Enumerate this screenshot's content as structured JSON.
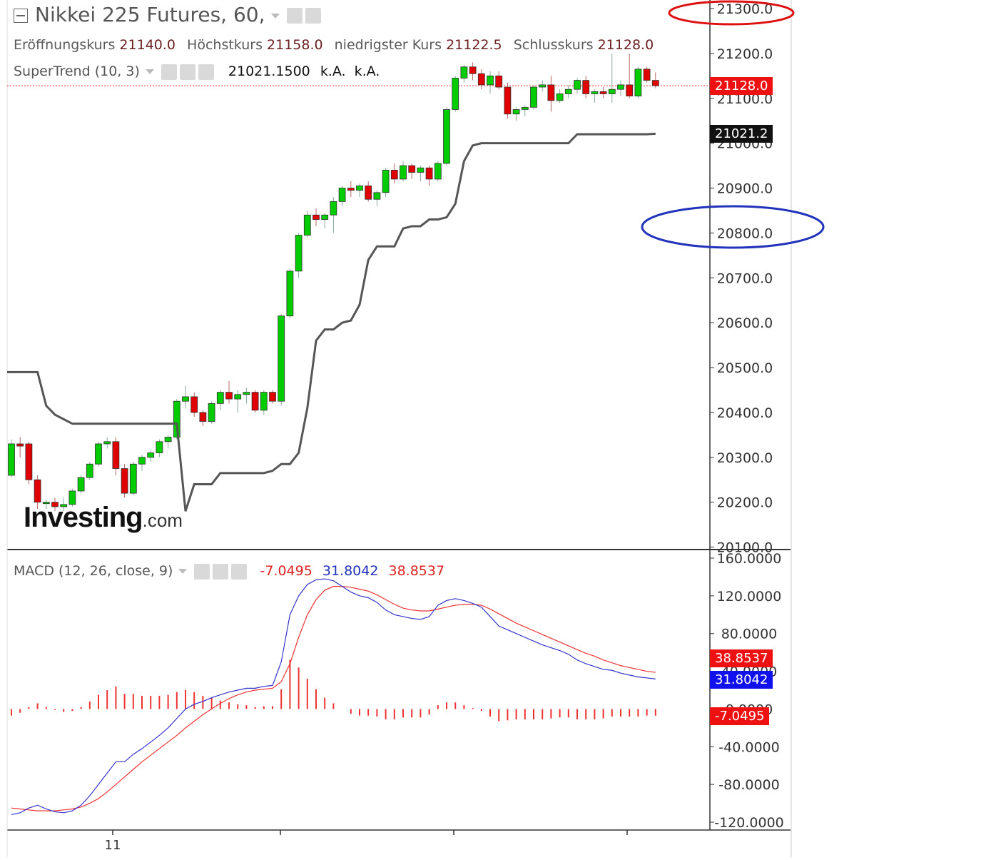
{
  "header": {
    "title": "Nikkei 225 Futures, 60,",
    "ohlc": [
      {
        "label": "Eröffnungskurs",
        "value": "21140.0"
      },
      {
        "label": "Höchstkurs",
        "value": "21158.0"
      },
      {
        "label": "niedrigster Kurs",
        "value": "21122.5"
      },
      {
        "label": "Schlusskurs",
        "value": "21128.0"
      }
    ]
  },
  "supertrend_legend": {
    "name": "SuperTrend (10, 3)",
    "value": "21021.1500",
    "na1": "k.A.",
    "na2": "k.A."
  },
  "macd_legend": {
    "name": "MACD (12, 26, close, 9)",
    "hist": "-7.0495",
    "macd": "31.8042",
    "signal": "38.8537"
  },
  "price_tags": {
    "last": "21128.0",
    "supertrend": "21021.2",
    "signal": "38.8537",
    "macd": "31.8042",
    "hist": "-7.0495"
  },
  "logo": {
    "main": "Investing",
    "suffix": ".com"
  },
  "colors": {
    "up": "#00cc00",
    "down": "#e00000",
    "supertrend": "#555555",
    "macd_line": "#3333cc",
    "signal_line": "#ee3333",
    "histogram": "#ee3333",
    "annotation_red": "#dd1111",
    "annotation_blue": "#2233bb"
  },
  "chart_data": [
    {
      "type": "candlestick",
      "title": "Nikkei 225 Futures, 60,",
      "ylim": [
        20100,
        21300
      ],
      "y_ticks": [
        "21300.0",
        "21200.0",
        "21100.0",
        "21000.0",
        "20900.0",
        "20800.0",
        "20700.0",
        "20600.0",
        "20500.0",
        "20400.0",
        "20300.0",
        "20200.0",
        "20100.0"
      ],
      "x_ticks": [
        "11"
      ],
      "candles": [
        [
          20260,
          20340,
          20255,
          20330
        ],
        [
          20330,
          20345,
          20300,
          20325
        ],
        [
          20330,
          20335,
          20240,
          20250
        ],
        [
          20250,
          20260,
          20185,
          20200
        ],
        [
          20200,
          20205,
          20185,
          20200
        ],
        [
          20200,
          20210,
          20180,
          20190
        ],
        [
          20190,
          20210,
          20180,
          20195
        ],
        [
          20195,
          20230,
          20190,
          20225
        ],
        [
          20225,
          20260,
          20220,
          20255
        ],
        [
          20255,
          20290,
          20250,
          20285
        ],
        [
          20285,
          20335,
          20280,
          20330
        ],
        [
          20330,
          20345,
          20320,
          20335
        ],
        [
          20335,
          20345,
          20260,
          20275
        ],
        [
          20275,
          20285,
          20210,
          20220
        ],
        [
          20220,
          20290,
          20215,
          20285
        ],
        [
          20285,
          20305,
          20270,
          20300
        ],
        [
          20300,
          20315,
          20290,
          20310
        ],
        [
          20310,
          20340,
          20300,
          20335
        ],
        [
          20335,
          20350,
          20320,
          20345
        ],
        [
          20345,
          20430,
          20340,
          20425
        ],
        [
          20425,
          20460,
          20410,
          20435
        ],
        [
          20435,
          20445,
          20390,
          20400
        ],
        [
          20400,
          20405,
          20370,
          20380
        ],
        [
          20380,
          20425,
          20375,
          20420
        ],
        [
          20420,
          20450,
          20405,
          20445
        ],
        [
          20445,
          20470,
          20420,
          20430
        ],
        [
          20430,
          20450,
          20400,
          20440
        ],
        [
          20440,
          20455,
          20420,
          20445
        ],
        [
          20445,
          20450,
          20400,
          20405
        ],
        [
          20405,
          20450,
          20395,
          20445
        ],
        [
          20445,
          20450,
          20420,
          20425
        ],
        [
          20425,
          20620,
          20415,
          20615
        ],
        [
          20615,
          20720,
          20610,
          20715
        ],
        [
          20715,
          20800,
          20700,
          20795
        ],
        [
          20795,
          20850,
          20790,
          20840
        ],
        [
          20840,
          20855,
          20815,
          20830
        ],
        [
          20830,
          20845,
          20810,
          20840
        ],
        [
          20840,
          20880,
          20800,
          20870
        ],
        [
          20870,
          20905,
          20860,
          20900
        ],
        [
          20900,
          20915,
          20880,
          20895
        ],
        [
          20895,
          20910,
          20880,
          20905
        ],
        [
          20905,
          20915,
          20870,
          20875
        ],
        [
          20875,
          20895,
          20860,
          20890
        ],
        [
          20890,
          20945,
          20880,
          20940
        ],
        [
          20940,
          20955,
          20910,
          20920
        ],
        [
          20920,
          20960,
          20915,
          20950
        ],
        [
          20950,
          20955,
          20920,
          20935
        ],
        [
          20935,
          20950,
          20915,
          20945
        ],
        [
          20945,
          20950,
          20905,
          20920
        ],
        [
          20920,
          20960,
          20915,
          20955
        ],
        [
          20955,
          21080,
          20950,
          21075
        ],
        [
          21075,
          21150,
          21070,
          21145
        ],
        [
          21145,
          21175,
          21135,
          21170
        ],
        [
          21170,
          21180,
          21140,
          21155
        ],
        [
          21155,
          21165,
          21120,
          21130
        ],
        [
          21130,
          21160,
          21110,
          21150
        ],
        [
          21150,
          21160,
          21120,
          21125
        ],
        [
          21125,
          21135,
          21055,
          21065
        ],
        [
          21065,
          21080,
          21050,
          21075
        ],
        [
          21075,
          21085,
          21060,
          21080
        ],
        [
          21080,
          21130,
          21075,
          21125
        ],
        [
          21125,
          21140,
          21115,
          21130
        ],
        [
          21130,
          21150,
          21070,
          21095
        ],
        [
          21095,
          21120,
          21090,
          21110
        ],
        [
          21110,
          21130,
          21100,
          21120
        ],
        [
          21120,
          21145,
          21110,
          21140
        ],
        [
          21140,
          21150,
          21100,
          21110
        ],
        [
          21110,
          21120,
          21090,
          21115
        ],
        [
          21115,
          21125,
          21100,
          21110
        ],
        [
          21110,
          21200,
          21090,
          21120
        ],
        [
          21120,
          21140,
          21105,
          21130
        ],
        [
          21130,
          21200,
          21100,
          21105
        ],
        [
          21105,
          21170,
          21100,
          21165
        ],
        [
          21165,
          21170,
          21135,
          21140
        ],
        [
          21140,
          21158,
          21122.5,
          21128
        ]
      ],
      "supertrend": [
        20490,
        20490,
        20490,
        20490,
        20415,
        20395,
        20385,
        20375,
        20375,
        20375,
        20375,
        20375,
        20375,
        20375,
        20375,
        20375,
        20375,
        20375,
        20375,
        20375,
        20180,
        20240,
        20240,
        20240,
        20265,
        20265,
        20265,
        20265,
        20265,
        20265,
        20270,
        20285,
        20285,
        20310,
        20410,
        20560,
        20585,
        20585,
        20600,
        20605,
        20640,
        20740,
        20770,
        20770,
        20770,
        20810,
        20815,
        20815,
        20830,
        20830,
        20835,
        20865,
        20960,
        20995,
        21000,
        21000,
        21000,
        21000,
        21000,
        21000,
        21000,
        21000,
        21000,
        21000,
        21000,
        21020,
        21020,
        21020,
        21020,
        21020,
        21020,
        21020,
        21020,
        21020,
        21021.15
      ],
      "last_close": 21128.0,
      "supertrend_last": 21021.15
    },
    {
      "type": "line",
      "title": "MACD (12, 26, close, 9)",
      "ylim": [
        -120,
        160
      ],
      "y_ticks": [
        "160.0000",
        "120.0000",
        "80.0000",
        "40.0000",
        "0.0000",
        "-40.0000",
        "-80.0000",
        "-120.0000"
      ],
      "series": [
        {
          "name": "MACD",
          "values": [
            -112,
            -110,
            -105,
            -102,
            -106,
            -109,
            -110,
            -108,
            -102,
            -92,
            -80,
            -68,
            -56,
            -56,
            -48,
            -42,
            -35,
            -28,
            -20,
            -10,
            0,
            5,
            8,
            12,
            15,
            18,
            20,
            22,
            22,
            24,
            25,
            50,
            100,
            120,
            132,
            137,
            138,
            136,
            130,
            124,
            120,
            118,
            113,
            105,
            100,
            98,
            96,
            95,
            98,
            110,
            115,
            117,
            115,
            112,
            108,
            98,
            88,
            84,
            80,
            76,
            72,
            68,
            65,
            62,
            58,
            52,
            48,
            45,
            42,
            41,
            38,
            36,
            34,
            33,
            31.8042
          ]
        },
        {
          "name": "Signal",
          "values": [
            -105,
            -106,
            -107,
            -108,
            -108,
            -108,
            -107,
            -106,
            -104,
            -100,
            -95,
            -88,
            -80,
            -72,
            -64,
            -56,
            -49,
            -42,
            -35,
            -28,
            -20,
            -13,
            -6,
            0,
            6,
            11,
            15,
            18,
            20,
            21,
            22,
            29,
            48,
            76,
            100,
            116,
            126,
            130,
            130,
            129,
            127,
            125,
            121,
            116,
            111,
            107,
            105,
            104,
            104,
            106,
            108,
            110,
            111,
            111,
            110,
            106,
            101,
            96,
            91,
            87,
            83,
            79,
            75,
            71,
            67,
            63,
            59,
            56,
            52,
            49,
            46,
            44,
            42,
            40,
            38.8537
          ]
        },
        {
          "name": "Histogram",
          "values": [
            -7,
            -4,
            2,
            6,
            2,
            -1,
            -3,
            -2,
            2,
            8,
            15,
            20,
            24,
            16,
            16,
            14,
            14,
            14,
            15,
            18,
            20,
            18,
            14,
            12,
            9,
            7,
            5,
            4,
            2,
            3,
            3,
            21,
            52,
            44,
            32,
            21,
            12,
            6,
            0,
            -5,
            -7,
            -7,
            -8,
            -11,
            -11,
            -9,
            -9,
            -9,
            -6,
            4,
            7,
            7,
            4,
            1,
            -2,
            -8,
            -13,
            -12,
            -11,
            -11,
            -11,
            -11,
            -10,
            -9,
            -9,
            -11,
            -11,
            -11,
            -10,
            -8,
            -8,
            -8,
            -8,
            -7,
            -7.0495
          ]
        }
      ]
    }
  ]
}
